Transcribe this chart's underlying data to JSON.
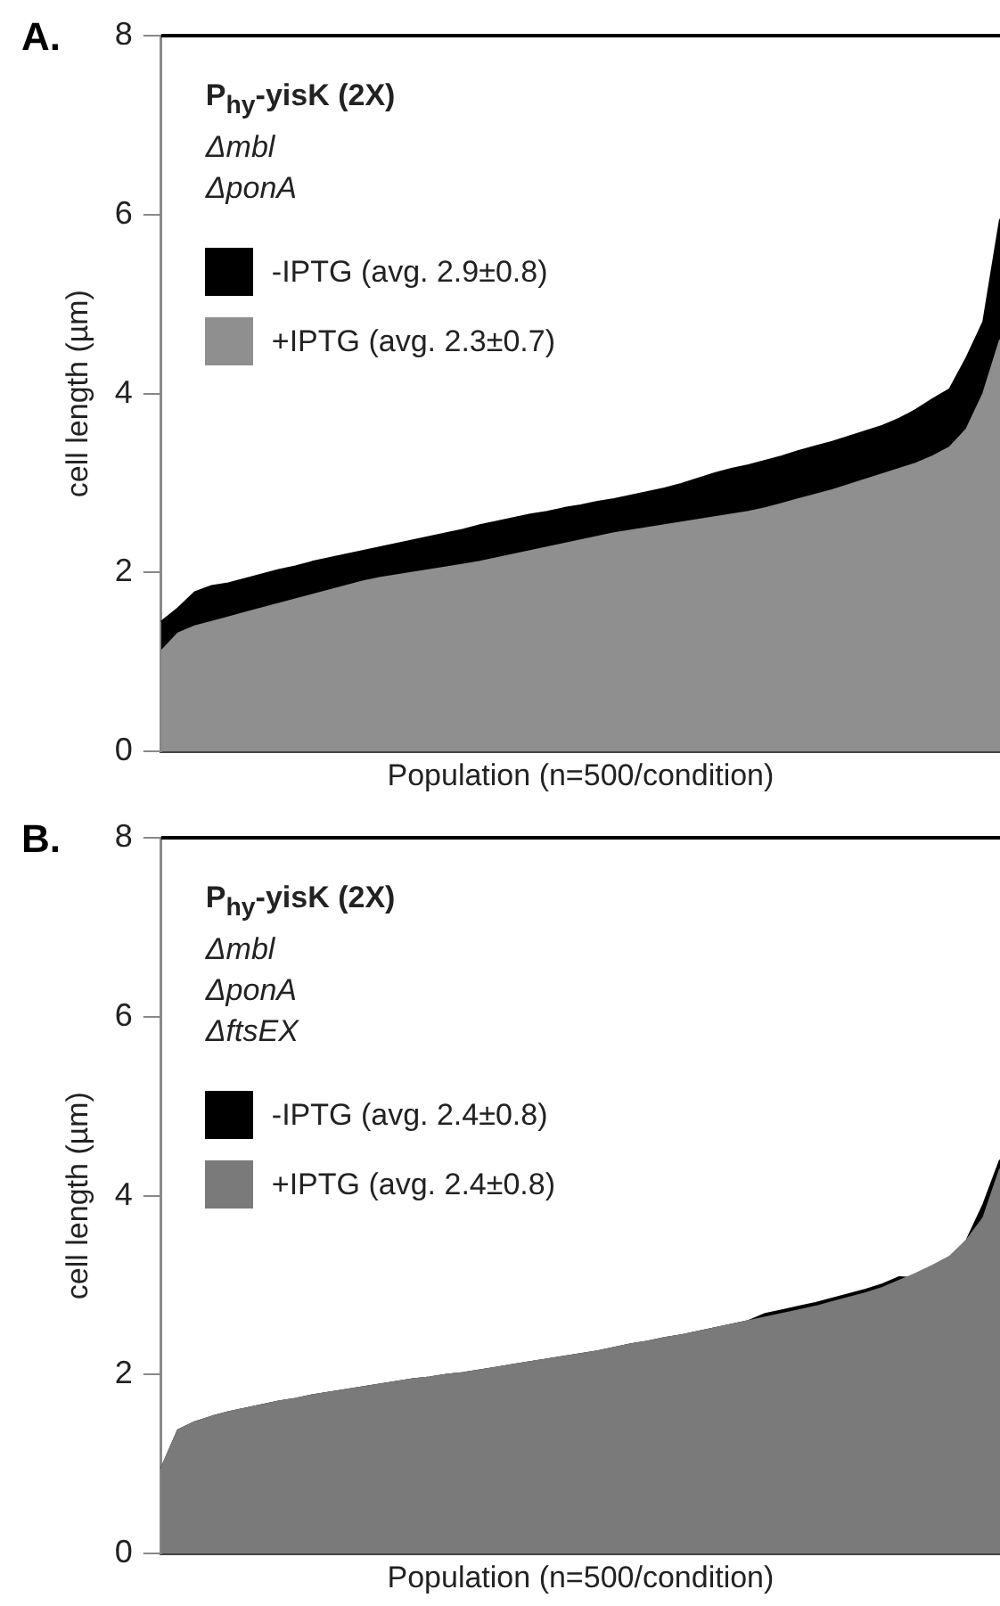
{
  "chart_data": [
    {
      "type": "area",
      "title": "A.",
      "xlabel": "Population (n=500/condition)",
      "ylabel": "cell length (µm)",
      "categories": [
        null,
        null,
        null,
        null,
        null,
        null,
        null,
        null,
        null,
        null,
        null,
        null,
        null,
        null,
        null,
        null,
        null,
        null,
        null,
        null,
        null,
        null,
        null,
        null,
        null,
        null,
        null,
        null,
        null,
        null,
        null,
        null,
        null,
        null,
        null,
        null,
        null,
        null,
        null,
        null,
        null,
        null,
        null,
        null,
        null,
        null,
        null,
        null,
        null,
        null,
        null
      ],
      "series": [
        {
          "name": "-IPTG (avg. 2.9±0.8)",
          "color": "#000000",
          "values": [
            1.45,
            1.6,
            1.78,
            1.85,
            1.88,
            1.93,
            1.98,
            2.03,
            2.07,
            2.12,
            2.16,
            2.2,
            2.24,
            2.28,
            2.32,
            2.36,
            2.4,
            2.44,
            2.48,
            2.53,
            2.57,
            2.61,
            2.65,
            2.68,
            2.72,
            2.75,
            2.79,
            2.82,
            2.86,
            2.9,
            2.94,
            2.99,
            3.05,
            3.11,
            3.16,
            3.2,
            3.25,
            3.3,
            3.36,
            3.41,
            3.46,
            3.52,
            3.58,
            3.64,
            3.72,
            3.82,
            3.94,
            4.05,
            4.4,
            4.8,
            5.95
          ]
        },
        {
          "name": "+IPTG (avg. 2.3±0.7)",
          "color": "#8f8f8f",
          "values": [
            1.12,
            1.32,
            1.4,
            1.45,
            1.5,
            1.55,
            1.6,
            1.65,
            1.7,
            1.75,
            1.8,
            1.85,
            1.9,
            1.94,
            1.97,
            2.0,
            2.03,
            2.06,
            2.09,
            2.12,
            2.16,
            2.2,
            2.24,
            2.28,
            2.32,
            2.36,
            2.4,
            2.44,
            2.47,
            2.5,
            2.53,
            2.56,
            2.59,
            2.62,
            2.65,
            2.68,
            2.72,
            2.77,
            2.82,
            2.87,
            2.92,
            2.98,
            3.04,
            3.1,
            3.16,
            3.22,
            3.3,
            3.4,
            3.6,
            4.0,
            4.6
          ]
        }
      ],
      "ylim": [
        0,
        8
      ],
      "yticks": [
        0,
        2,
        4,
        6,
        8
      ],
      "grid": false,
      "legend": "top left",
      "annotations": [
        "P$_{hy}$-yisK (2X)",
        "Δmbl",
        "ΔponA"
      ]
    },
    {
      "type": "area",
      "title": "B.",
      "xlabel": "Population (n=500/condition)",
      "ylabel": "cell length (µm)",
      "categories": [
        null,
        null,
        null,
        null,
        null,
        null,
        null,
        null,
        null,
        null,
        null,
        null,
        null,
        null,
        null,
        null,
        null,
        null,
        null,
        null,
        null,
        null,
        null,
        null,
        null,
        null,
        null,
        null,
        null,
        null,
        null,
        null,
        null,
        null,
        null,
        null,
        null,
        null,
        null,
        null,
        null,
        null,
        null,
        null,
        null,
        null,
        null,
        null,
        null,
        null,
        null
      ],
      "series": [
        {
          "name": "-IPTG (avg. 2.4±0.8)",
          "color": "#000000",
          "values": [
            0.95,
            1.38,
            1.47,
            1.53,
            1.58,
            1.62,
            1.66,
            1.7,
            1.73,
            1.77,
            1.8,
            1.83,
            1.86,
            1.89,
            1.92,
            1.95,
            1.97,
            2.0,
            2.02,
            2.05,
            2.08,
            2.11,
            2.14,
            2.17,
            2.2,
            2.23,
            2.26,
            2.3,
            2.34,
            2.37,
            2.41,
            2.44,
            2.48,
            2.52,
            2.56,
            2.6,
            2.68,
            2.72,
            2.76,
            2.8,
            2.85,
            2.9,
            2.95,
            3.01,
            3.09,
            3.08,
            3.17,
            3.27,
            3.5,
            3.9,
            4.4
          ]
        },
        {
          "name": "+IPTG (avg. 2.4±0.8)",
          "color": "#7a7a7a",
          "values": [
            0.95,
            1.38,
            1.47,
            1.53,
            1.58,
            1.62,
            1.66,
            1.7,
            1.73,
            1.77,
            1.8,
            1.83,
            1.86,
            1.89,
            1.92,
            1.95,
            1.97,
            2.0,
            2.02,
            2.05,
            2.08,
            2.11,
            2.14,
            2.17,
            2.2,
            2.23,
            2.26,
            2.3,
            2.34,
            2.37,
            2.41,
            2.44,
            2.48,
            2.52,
            2.56,
            2.6,
            2.64,
            2.68,
            2.72,
            2.76,
            2.81,
            2.86,
            2.91,
            2.97,
            3.05,
            3.13,
            3.22,
            3.32,
            3.5,
            3.75,
            4.3
          ]
        }
      ],
      "ylim": [
        0,
        8
      ],
      "yticks": [
        0,
        2,
        4,
        6,
        8
      ],
      "grid": false,
      "legend": "top left",
      "annotations": [
        "P$_{hy}$-yisK (2X)",
        "Δmbl",
        "ΔponA",
        "ΔftsEX"
      ]
    }
  ]
}
